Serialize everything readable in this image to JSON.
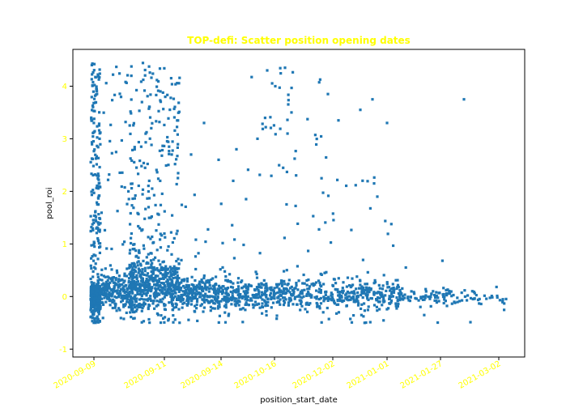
{
  "chart_data": {
    "type": "scatter",
    "title": "TOP-defi: Scatter position opening dates",
    "xlabel": "position_start_date",
    "ylabel": "pool_roi",
    "x_tick_labels": [
      "2020-09-09",
      "2020-09-11",
      "2020-09-14",
      "2020-10-16",
      "2020-12-02",
      "2021-01-01",
      "2021-01-27",
      "2021-03-02"
    ],
    "y_ticks": [
      -1,
      0,
      1,
      2,
      3,
      4
    ],
    "ylim": [
      -1.15,
      4.7
    ],
    "grid": false,
    "legend": "none",
    "point_count": 2400,
    "clusters": [
      {
        "x_range": [
          "2020-09-09",
          "2020-09-10"
        ],
        "y_range": [
          -0.85,
          4.45
        ],
        "density": "very high",
        "concentration": "near 0 with tall band up to 4.4"
      },
      {
        "x_range": [
          "2020-09-10",
          "2020-09-11"
        ],
        "y_range": [
          -0.85,
          4.45
        ],
        "density": "high",
        "concentration": "0 to 1, tall band up to 4.4"
      },
      {
        "x_range": [
          "2020-09-11",
          "2020-09-14"
        ],
        "y_range": [
          -0.85,
          2.0
        ],
        "density": "high",
        "concentration": "around 0 to 1"
      },
      {
        "x_range": [
          "2020-09-14",
          "2020-10-16"
        ],
        "y_range": [
          -0.85,
          1.0
        ],
        "density": "medium",
        "concentration": "around 0"
      },
      {
        "x_range": [
          "2020-10-16",
          "2020-12-02"
        ],
        "y_range": [
          -0.85,
          4.3
        ],
        "density": "medium",
        "concentration": "around 0, sparse up to 4"
      },
      {
        "x_range": [
          "2020-12-02",
          "2021-01-01"
        ],
        "y_range": [
          -0.85,
          2.2
        ],
        "density": "medium",
        "concentration": "around 0"
      },
      {
        "x_range": [
          "2021-01-01",
          "2021-01-27"
        ],
        "y_range": [
          -0.6,
          0.4
        ],
        "density": "low",
        "concentration": "around 0"
      },
      {
        "x_range": [
          "2021-01-27",
          "2021-03-02"
        ],
        "y_range": [
          -0.5,
          0.3
        ],
        "density": "sparse",
        "concentration": "around 0"
      }
    ]
  },
  "colors": {
    "marker": "#1f77b4",
    "title": "#ffff00",
    "ticks": "#ffff00",
    "axes": "#000000",
    "background": "#ffffff"
  }
}
